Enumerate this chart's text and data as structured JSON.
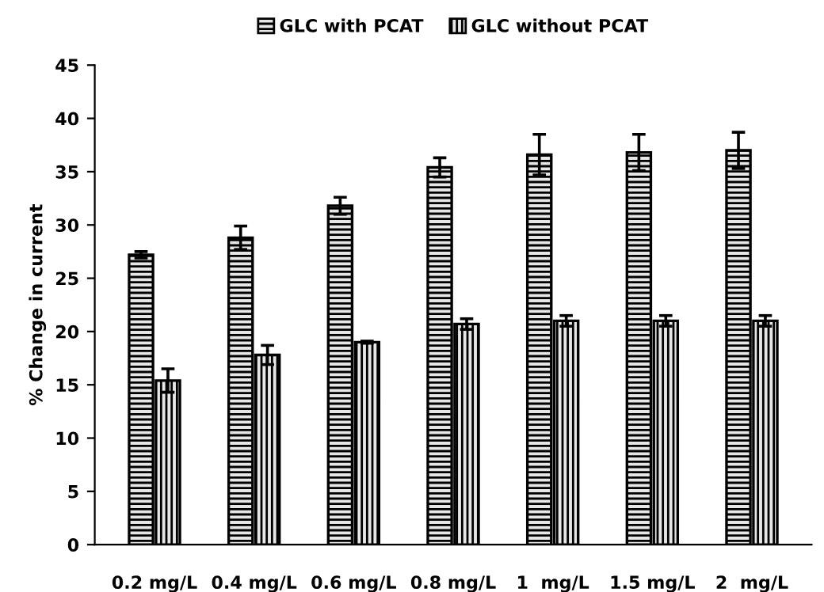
{
  "chart_data": {
    "type": "bar",
    "ylabel": "% Change in current",
    "categories": [
      "0.2 mg/L",
      "0.4 mg/L",
      "0.6 mg/L",
      "0.8 mg/L",
      "1  mg/L",
      "1.5 mg/L",
      "2  mg/L"
    ],
    "series": [
      {
        "name": "GLC with PCAT",
        "color": "#000000",
        "values": [
          27.2,
          28.8,
          31.8,
          35.4,
          36.6,
          36.8,
          37.0
        ],
        "errors": [
          0.3,
          1.1,
          0.8,
          0.9,
          1.9,
          1.7,
          1.7
        ]
      },
      {
        "name": "GLC without PCAT",
        "color": "#000000",
        "values": [
          15.4,
          17.8,
          19.0,
          20.7,
          21.0,
          21.0,
          21.0
        ],
        "errors": [
          1.1,
          0.9,
          0.1,
          0.5,
          0.5,
          0.5,
          0.5
        ]
      }
    ],
    "ylim": [
      0,
      45
    ],
    "yticks": [
      0,
      5,
      10,
      15,
      20,
      25,
      30,
      35,
      40,
      45
    ],
    "grid": false,
    "legend": "top"
  }
}
